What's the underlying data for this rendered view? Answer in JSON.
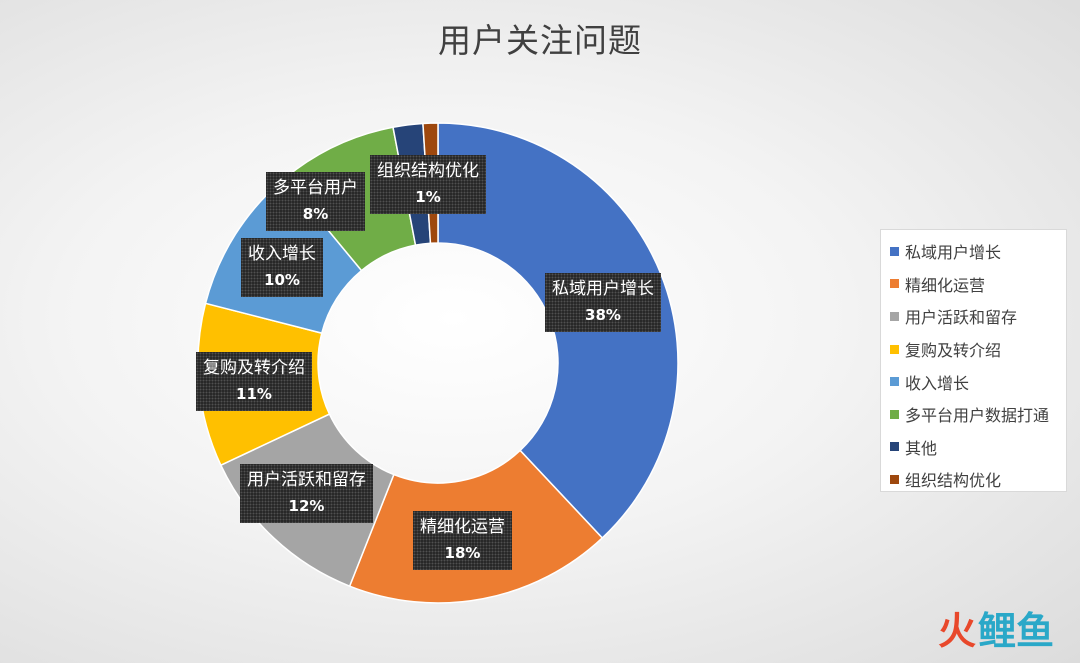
{
  "chart_data": {
    "type": "pie",
    "subtype": "donut",
    "title": "用户关注问题",
    "legend_position": "right",
    "slices": [
      {
        "name": "私域用户增长",
        "label": "私域用户增长",
        "pct_label": "38%",
        "value": 38,
        "color": "#4472c4"
      },
      {
        "name": "精细化运营",
        "label": "精细化运营",
        "pct_label": "18%",
        "value": 18,
        "color": "#ed7d31"
      },
      {
        "name": "用户活跃和留存",
        "label": "用户活跃和留存",
        "pct_label": "12%",
        "value": 12,
        "color": "#a5a5a5"
      },
      {
        "name": "复购及转介绍",
        "label": "复购及转介绍",
        "pct_label": "11%",
        "value": 11,
        "color": "#ffc000"
      },
      {
        "name": "收入增长",
        "label": "收入增长",
        "pct_label": "10%",
        "value": 10,
        "color": "#5b9bd5"
      },
      {
        "name": "多平台用户数据打通",
        "label": "多平台用户",
        "pct_label": "8%",
        "value": 8,
        "color": "#70ad47"
      },
      {
        "name": "其他",
        "label": "",
        "pct_label": "",
        "value": 2,
        "color": "#264478"
      },
      {
        "name": "组织结构优化",
        "label": "组织结构优化",
        "pct_label": "1%",
        "value": 1,
        "color": "#9e480e"
      }
    ]
  },
  "watermark": {
    "fire": "火",
    "text": "鲤鱼",
    "fire_color": "#e8482b",
    "text_color": "#2aa8c8"
  }
}
